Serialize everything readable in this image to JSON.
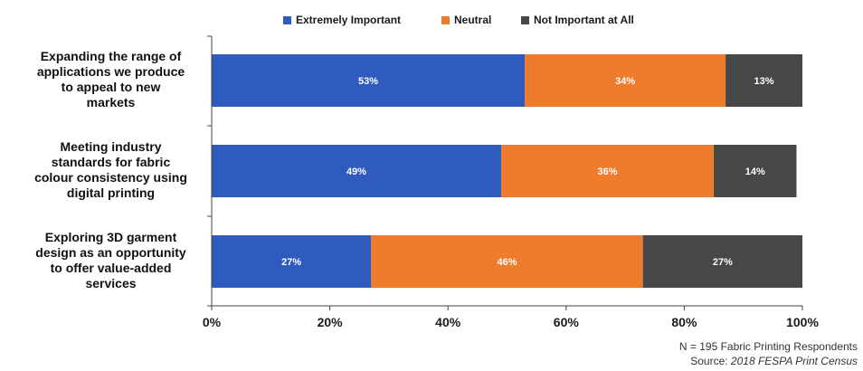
{
  "chart_data": {
    "type": "bar",
    "orientation": "horizontal",
    "stacked": true,
    "categories": [
      "Expanding the range of applications we produce to appeal to new markets",
      "Meeting industry standards for fabric colour consistency using digital printing",
      "Exploring 3D garment design as an opportunity to offer value-added services"
    ],
    "category_lines": [
      [
        "Expanding the range of",
        "applications we produce",
        "to appeal to new",
        "markets"
      ],
      [
        "Meeting industry",
        "standards for fabric",
        "colour consistency using",
        "digital printing"
      ],
      [
        "Exploring 3D garment",
        "design as an opportunity",
        "to offer value-added",
        "services"
      ]
    ],
    "series": [
      {
        "name": "Extremely Important",
        "color": "#2e5bbd",
        "values": [
          53,
          49,
          27
        ],
        "labels": [
          "53%",
          "49%",
          "27%"
        ]
      },
      {
        "name": "Neutral",
        "color": "#ef7b2c",
        "values": [
          34,
          36,
          46
        ],
        "labels": [
          "34%",
          "36%",
          "46%"
        ]
      },
      {
        "name": "Not Important at All",
        "color": "#474747",
        "values": [
          13,
          14,
          27
        ],
        "labels": [
          "13%",
          "14%",
          "27%"
        ]
      }
    ],
    "xlim": [
      0,
      100
    ],
    "xticks": [
      0,
      20,
      40,
      60,
      80,
      100
    ],
    "xtick_labels": [
      "0%",
      "20%",
      "40%",
      "60%",
      "80%",
      "100%"
    ],
    "legend_position": "top",
    "grid": false
  },
  "footnote": {
    "line1": "N = 195 Fabric Printing Respondents",
    "line2_prefix": "Source: ",
    "line2_source": "2018 FESPA Print Census"
  }
}
